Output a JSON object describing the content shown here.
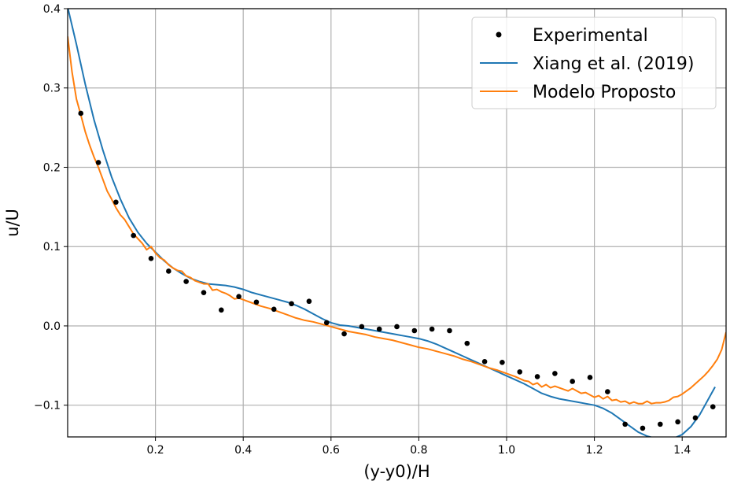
{
  "chart_data": {
    "type": "line",
    "title": "",
    "xlabel": "(y-y0)/H",
    "ylabel": "u/U",
    "xlim": [
      0.0,
      1.5
    ],
    "ylim": [
      -0.14,
      0.4
    ],
    "x_ticks": [
      0.2,
      0.4,
      0.6,
      0.8,
      1.0,
      1.2,
      1.4
    ],
    "x_tick_labels": [
      "0.2",
      "0.4",
      "0.6",
      "0.8",
      "1.0",
      "1.2",
      "1.4"
    ],
    "y_ticks": [
      -0.1,
      0.0,
      0.1,
      0.2,
      0.3,
      0.4
    ],
    "y_tick_labels": [
      "−0.1",
      "0.0",
      "0.1",
      "0.2",
      "0.3",
      "0.4"
    ],
    "grid": true,
    "legend_position": "top-right",
    "series": [
      {
        "name": "Experimental",
        "kind": "scatter",
        "color": "#000000",
        "x": [
          0.03,
          0.07,
          0.11,
          0.15,
          0.19,
          0.23,
          0.27,
          0.31,
          0.35,
          0.39,
          0.43,
          0.47,
          0.51,
          0.55,
          0.59,
          0.63,
          0.67,
          0.71,
          0.75,
          0.79,
          0.83,
          0.87,
          0.91,
          0.95,
          0.99,
          1.03,
          1.07,
          1.11,
          1.15,
          1.19,
          1.23,
          1.27,
          1.31,
          1.35,
          1.39,
          1.43,
          1.47
        ],
        "y": [
          0.268,
          0.206,
          0.156,
          0.114,
          0.085,
          0.069,
          0.056,
          0.042,
          0.02,
          0.037,
          0.03,
          0.021,
          0.028,
          0.031,
          0.004,
          -0.01,
          -0.001,
          -0.004,
          -0.001,
          -0.006,
          -0.004,
          -0.006,
          -0.022,
          -0.045,
          -0.046,
          -0.058,
          -0.064,
          -0.06,
          -0.07,
          -0.065,
          -0.083,
          -0.124,
          -0.129,
          -0.124,
          -0.121,
          -0.116,
          -0.102
        ]
      },
      {
        "name": "Xiang et al. (2019)",
        "kind": "line",
        "color": "#1f77b4",
        "x": [
          0.0,
          0.02,
          0.04,
          0.06,
          0.08,
          0.1,
          0.12,
          0.14,
          0.16,
          0.18,
          0.2,
          0.22,
          0.24,
          0.26,
          0.28,
          0.3,
          0.32,
          0.34,
          0.36,
          0.38,
          0.4,
          0.42,
          0.44,
          0.46,
          0.48,
          0.5,
          0.52,
          0.54,
          0.56,
          0.58,
          0.6,
          0.62,
          0.64,
          0.66,
          0.68,
          0.7,
          0.72,
          0.74,
          0.76,
          0.78,
          0.8,
          0.82,
          0.84,
          0.86,
          0.88,
          0.9,
          0.92,
          0.94,
          0.96,
          0.98,
          1.0,
          1.02,
          1.04,
          1.06,
          1.08,
          1.1,
          1.12,
          1.14,
          1.16,
          1.18,
          1.2,
          1.22,
          1.24,
          1.26,
          1.28,
          1.3,
          1.32,
          1.34,
          1.36,
          1.38,
          1.4,
          1.42,
          1.44,
          1.46,
          1.475
        ],
        "y": [
          0.402,
          0.355,
          0.305,
          0.26,
          0.222,
          0.188,
          0.16,
          0.136,
          0.118,
          0.104,
          0.093,
          0.082,
          0.073,
          0.066,
          0.06,
          0.056,
          0.053,
          0.052,
          0.051,
          0.049,
          0.046,
          0.042,
          0.039,
          0.036,
          0.033,
          0.03,
          0.026,
          0.021,
          0.015,
          0.009,
          0.004,
          0.001,
          0.0,
          -0.002,
          -0.004,
          -0.006,
          -0.008,
          -0.01,
          -0.012,
          -0.014,
          -0.016,
          -0.019,
          -0.023,
          -0.028,
          -0.033,
          -0.038,
          -0.043,
          -0.048,
          -0.053,
          -0.058,
          -0.063,
          -0.068,
          -0.073,
          -0.079,
          -0.085,
          -0.089,
          -0.092,
          -0.094,
          -0.096,
          -0.098,
          -0.1,
          -0.104,
          -0.11,
          -0.118,
          -0.126,
          -0.134,
          -0.139,
          -0.142,
          -0.143,
          -0.142,
          -0.137,
          -0.127,
          -0.112,
          -0.092,
          -0.077
        ]
      },
      {
        "name": "Modelo Proposto",
        "kind": "line",
        "color": "#ff7f0e",
        "x": [
          0.0,
          0.01,
          0.02,
          0.03,
          0.04,
          0.05,
          0.06,
          0.07,
          0.08,
          0.09,
          0.1,
          0.11,
          0.12,
          0.13,
          0.14,
          0.15,
          0.16,
          0.17,
          0.18,
          0.19,
          0.2,
          0.21,
          0.22,
          0.23,
          0.24,
          0.25,
          0.26,
          0.27,
          0.28,
          0.29,
          0.3,
          0.31,
          0.32,
          0.33,
          0.34,
          0.35,
          0.36,
          0.37,
          0.38,
          0.39,
          0.4,
          0.42,
          0.44,
          0.46,
          0.48,
          0.5,
          0.52,
          0.54,
          0.56,
          0.58,
          0.6,
          0.62,
          0.64,
          0.66,
          0.68,
          0.7,
          0.72,
          0.74,
          0.76,
          0.78,
          0.8,
          0.82,
          0.84,
          0.86,
          0.88,
          0.9,
          0.92,
          0.94,
          0.96,
          0.98,
          1.0,
          1.02,
          1.04,
          1.05,
          1.06,
          1.07,
          1.08,
          1.09,
          1.1,
          1.11,
          1.12,
          1.13,
          1.14,
          1.15,
          1.16,
          1.17,
          1.18,
          1.19,
          1.2,
          1.21,
          1.22,
          1.23,
          1.24,
          1.25,
          1.26,
          1.27,
          1.28,
          1.29,
          1.3,
          1.31,
          1.32,
          1.33,
          1.34,
          1.35,
          1.36,
          1.37,
          1.38,
          1.39,
          1.4,
          1.41,
          1.42,
          1.43,
          1.44,
          1.45,
          1.46,
          1.47,
          1.48,
          1.49,
          1.5
        ],
        "y": [
          0.365,
          0.32,
          0.286,
          0.266,
          0.245,
          0.228,
          0.213,
          0.2,
          0.185,
          0.17,
          0.16,
          0.149,
          0.14,
          0.134,
          0.125,
          0.116,
          0.11,
          0.104,
          0.096,
          0.1,
          0.092,
          0.086,
          0.083,
          0.077,
          0.073,
          0.07,
          0.069,
          0.063,
          0.061,
          0.057,
          0.055,
          0.053,
          0.053,
          0.045,
          0.046,
          0.043,
          0.041,
          0.038,
          0.034,
          0.035,
          0.033,
          0.029,
          0.025,
          0.022,
          0.018,
          0.014,
          0.01,
          0.007,
          0.005,
          0.002,
          -0.001,
          -0.004,
          -0.007,
          -0.009,
          -0.011,
          -0.014,
          -0.016,
          -0.018,
          -0.021,
          -0.024,
          -0.027,
          -0.029,
          -0.032,
          -0.035,
          -0.038,
          -0.042,
          -0.045,
          -0.049,
          -0.053,
          -0.056,
          -0.06,
          -0.064,
          -0.069,
          -0.07,
          -0.074,
          -0.072,
          -0.077,
          -0.074,
          -0.078,
          -0.076,
          -0.078,
          -0.08,
          -0.082,
          -0.079,
          -0.082,
          -0.085,
          -0.084,
          -0.087,
          -0.09,
          -0.088,
          -0.092,
          -0.089,
          -0.094,
          -0.093,
          -0.096,
          -0.095,
          -0.098,
          -0.096,
          -0.098,
          -0.098,
          -0.095,
          -0.098,
          -0.097,
          -0.097,
          -0.096,
          -0.094,
          -0.09,
          -0.089,
          -0.086,
          -0.082,
          -0.078,
          -0.073,
          -0.068,
          -0.063,
          -0.057,
          -0.05,
          -0.042,
          -0.03,
          -0.008
        ]
      }
    ]
  }
}
